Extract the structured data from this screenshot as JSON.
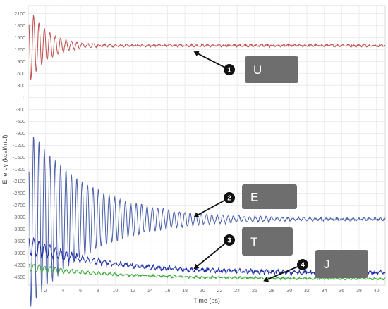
{
  "chart_data": {
    "type": "line",
    "title": "",
    "xlabel": "Time (ps)",
    "ylabel": "Energy (kcal/mol)",
    "xlim": [
      0,
      41
    ],
    "ylim": [
      -4700,
      2300
    ],
    "x_ticks": [
      2,
      4,
      6,
      8,
      10,
      12,
      14,
      16,
      18,
      20,
      22,
      24,
      26,
      28,
      30,
      32,
      34,
      36,
      38,
      40
    ],
    "y_ticks": [
      2100,
      1800,
      1500,
      1200,
      900,
      600,
      300,
      0,
      -300,
      -600,
      -900,
      -1200,
      -1500,
      -1800,
      -2100,
      -2400,
      -2700,
      -3000,
      -3300,
      -3600,
      -3900,
      -4200,
      -4500
    ],
    "grid": true,
    "series": [
      {
        "name": "U",
        "color": "#c0504d",
        "baseline": 1300,
        "initial": 1000,
        "decay": 2.2,
        "period": 0.62,
        "noise": 22
      },
      {
        "name": "E",
        "color": "#4a5fa8",
        "baseline": -3050,
        "initial": 2300,
        "decay": 7.0,
        "period": 0.62,
        "noise": 25
      },
      {
        "name": "T",
        "color": "#1f2fa8",
        "baseline": -4400,
        "initial": 700,
        "decay": 5.0,
        "period": 0.62,
        "noise": 40
      },
      {
        "name": "J",
        "color": "#3aaa35",
        "baseline": -4550,
        "initial": 300,
        "decay": 6.0,
        "period": 0.62,
        "noise": 20
      }
    ],
    "annotations": [
      {
        "number": "1",
        "label": "U",
        "target": [
          19,
          1150
        ]
      },
      {
        "number": "2",
        "label": "E",
        "target": [
          19,
          -3000
        ]
      },
      {
        "number": "3",
        "label": "T",
        "target": [
          19,
          -4300
        ]
      },
      {
        "number": "4",
        "label": "J",
        "target": [
          27,
          -4600
        ]
      }
    ]
  }
}
